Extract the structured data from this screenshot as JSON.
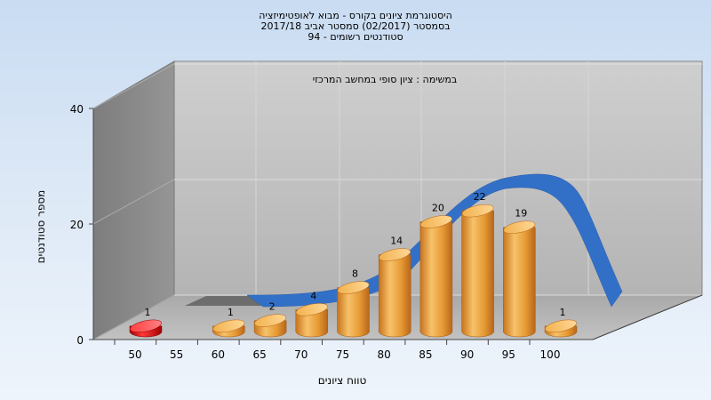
{
  "title_lines": [
    "היסטוגרמת ציונים בקורס - מבוא לאופטימיזציה",
    "בסמסטר  (02/2017)  סמסטר אביב 2017/18",
    "סטודנטים רשומים - 94"
  ],
  "chart_data": {
    "type": "bar",
    "subtitle": "במשימה : ציון סופי במחשב המרכזי",
    "xlabel": "טווח ציונים",
    "ylabel": "מספר סטודנטים",
    "x_ticks": [
      "50",
      "55",
      "60",
      "65",
      "70",
      "75",
      "80",
      "85",
      "90",
      "95",
      "100"
    ],
    "y_ticks": [
      "0",
      "20",
      "40"
    ],
    "ylim": [
      0,
      40
    ],
    "bars": [
      {
        "x": 50,
        "value": 1,
        "label": "1",
        "color": "#e01010"
      },
      {
        "x": 60,
        "value": 1,
        "label": "1",
        "color": "#e89a2c"
      },
      {
        "x": 65,
        "value": 2,
        "label": "2",
        "color": "#e89a2c"
      },
      {
        "x": 70,
        "value": 4,
        "label": "4",
        "color": "#e89a2c"
      },
      {
        "x": 75,
        "value": 8,
        "label": "8",
        "color": "#e89a2c"
      },
      {
        "x": 80,
        "value": 14,
        "label": "14",
        "color": "#e89a2c"
      },
      {
        "x": 85,
        "value": 20,
        "label": "20",
        "color": "#e89a2c"
      },
      {
        "x": 90,
        "value": 22,
        "label": "22",
        "color": "#e89a2c"
      },
      {
        "x": 95,
        "value": 19,
        "label": "19",
        "color": "#e89a2c"
      },
      {
        "x": 100,
        "value": 1,
        "label": "1",
        "color": "#e89a2c"
      }
    ],
    "curve": {
      "type": "normal-fit",
      "color": "#2f6fc6"
    },
    "grid": true,
    "legend": "none"
  }
}
